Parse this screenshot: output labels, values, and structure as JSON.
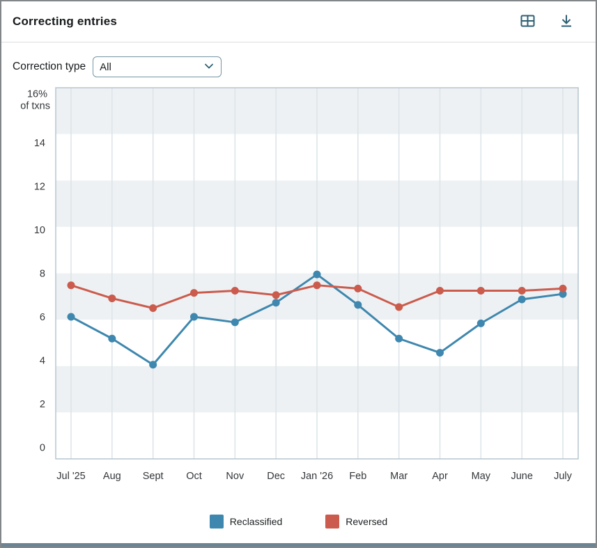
{
  "header": {
    "title": "Correcting entries",
    "icon_color": "#2d5f73",
    "actions": [
      {
        "name": "table-view",
        "icon": "table-icon"
      },
      {
        "name": "download",
        "icon": "download-icon"
      }
    ]
  },
  "filter": {
    "label": "Correction type",
    "selected": "All"
  },
  "chart_data": {
    "type": "line",
    "title": "Correcting entries",
    "x": [
      "Jul '25",
      "Aug",
      "Sept",
      "Oct",
      "Nov",
      "Dec",
      "Jan '26",
      "Feb",
      "Mar",
      "Apr",
      "May",
      "June",
      "July"
    ],
    "series": [
      {
        "name": "Reclassified",
        "color": "#3e87ae",
        "values": [
          6.0,
          5.0,
          3.8,
          6.0,
          5.75,
          6.65,
          7.95,
          6.55,
          5.0,
          4.35,
          5.7,
          6.8,
          7.05
        ]
      },
      {
        "name": "Reversed",
        "color": "#cb5b4d",
        "values": [
          7.45,
          6.85,
          6.4,
          7.1,
          7.2,
          7.0,
          7.45,
          7.3,
          6.45,
          7.2,
          7.2,
          7.2,
          7.3
        ]
      }
    ],
    "ylim": [
      0,
      16
    ],
    "yticks": [
      "14",
      "12",
      "10",
      "8",
      "6",
      "4",
      "2",
      "0"
    ],
    "ytick_values": [
      14,
      12,
      10,
      8,
      6,
      4,
      2,
      0
    ],
    "y_top_label_line1": "16%",
    "y_top_label_line2": "of txns",
    "grid": "vertical line per month; 8 alternating horizontal bands",
    "legend_position": "bottom",
    "band_color": "#eef1f3",
    "gridline_color": "#dce3e8",
    "plot_border_color": "#b5c5d1",
    "tick_text_color": "#333639"
  },
  "legend": {
    "items": [
      {
        "label": "Reclassified",
        "color": "#3e87ae"
      },
      {
        "label": "Reversed",
        "color": "#cb5b4d"
      }
    ]
  }
}
